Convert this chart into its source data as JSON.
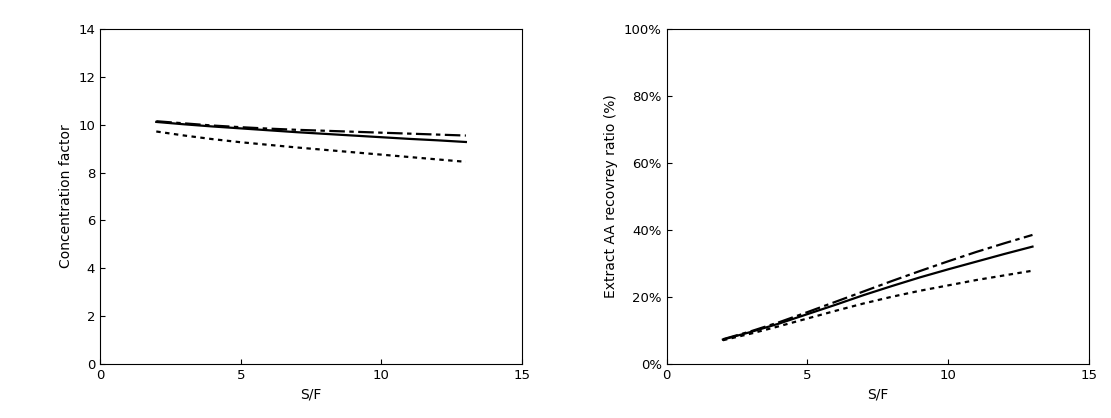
{
  "left_chart": {
    "xlabel": "S/F",
    "ylabel": "Concentration factor",
    "xlim": [
      0,
      15
    ],
    "ylim": [
      0,
      14
    ],
    "xticks": [
      0,
      5,
      10,
      15
    ],
    "yticks": [
      0,
      2,
      4,
      6,
      8,
      10,
      12,
      14
    ],
    "x_data": [
      2,
      3,
      4,
      5,
      6,
      7,
      8,
      9,
      10,
      11,
      12,
      13
    ],
    "line1_dotted": [
      9.72,
      9.55,
      9.4,
      9.27,
      9.16,
      9.05,
      8.95,
      8.85,
      8.75,
      8.65,
      8.55,
      8.45
    ],
    "line2_solid": [
      10.12,
      10.02,
      9.93,
      9.85,
      9.77,
      9.69,
      9.62,
      9.55,
      9.48,
      9.41,
      9.35,
      9.28
    ],
    "line3_dashdot": [
      10.15,
      10.06,
      9.97,
      9.9,
      9.84,
      9.79,
      9.75,
      9.71,
      9.67,
      9.63,
      9.59,
      9.55
    ]
  },
  "right_chart": {
    "xlabel": "S/F",
    "ylabel": "Extract AA recovrey ratio (%)",
    "xlim": [
      0,
      15
    ],
    "ylim": [
      0.0,
      1.0
    ],
    "xticks": [
      0,
      5,
      10,
      15
    ],
    "yticks": [
      0.0,
      0.2,
      0.4,
      0.6,
      0.8,
      1.0
    ],
    "x_data": [
      2,
      3,
      4,
      5,
      6,
      7,
      8,
      9,
      10,
      11,
      12,
      13
    ],
    "line1_dotted": [
      0.07,
      0.09,
      0.112,
      0.135,
      0.158,
      0.18,
      0.2,
      0.218,
      0.234,
      0.25,
      0.264,
      0.278
    ],
    "line2_solid": [
      0.072,
      0.095,
      0.12,
      0.148,
      0.176,
      0.205,
      0.232,
      0.258,
      0.282,
      0.305,
      0.328,
      0.35
    ],
    "line3_dashdot": [
      0.073,
      0.097,
      0.124,
      0.154,
      0.185,
      0.216,
      0.247,
      0.277,
      0.306,
      0.334,
      0.36,
      0.385
    ]
  },
  "line_color": "#000000",
  "lw": 1.6,
  "fig_width": 11.11,
  "fig_height": 4.18,
  "dpi": 100
}
